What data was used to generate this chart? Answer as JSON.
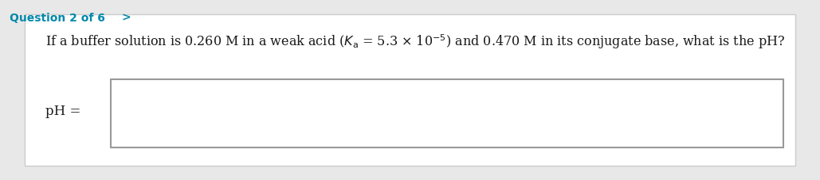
{
  "bg_color": "#e8e8e8",
  "card_color": "#ffffff",
  "header_text": "Question 2 of 6",
  "header_arrow": ">",
  "header_color": "#0088aa",
  "question_text": "If a buffer solution is 0.260 M in a weak acid ($\\mathit{K}_{\\mathrm{a}}$ = 5.3 $\\times$ 10$^{-5}$) and 0.470 M in its conjugate base, what is the pH?",
  "label_text": "pH =",
  "font_color": "#1a1a1a",
  "input_box_color": "#ffffff",
  "input_box_border": "#999999",
  "font_size_header": 10,
  "font_size_question": 11.5,
  "font_size_label": 12
}
